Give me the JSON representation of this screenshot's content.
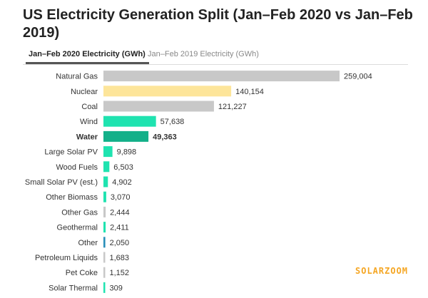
{
  "title": "US Electricity Generation Split (Jan–Feb 2020 vs Jan–Feb 2019)",
  "tabs": [
    {
      "label": "Jan–Feb 2020 Electricity (GWh)",
      "active": true
    },
    {
      "label": "Jan–Feb 2019 Electricity (GWh)",
      "active": false
    }
  ],
  "watermark": "SOLARZOOM",
  "colors": {
    "gray": "#c8c8c8",
    "nuclear": "#fde59a",
    "green": "#1fe3b0",
    "water": "#13b089",
    "other": "#2a8fb9"
  },
  "chart_data": {
    "type": "bar",
    "orientation": "horizontal",
    "categories": [
      "Natural Gas",
      "Nuclear",
      "Coal",
      "Wind",
      "Water",
      "Large Solar PV",
      "Wood Fuels",
      "Small Solar PV (est.)",
      "Other Biomass",
      "Other Gas",
      "Geothermal",
      "Other",
      "Petroleum Liquids",
      "Pet Coke",
      "Solar Thermal"
    ],
    "values": [
      259004,
      140154,
      121227,
      57638,
      49363,
      9898,
      6503,
      4902,
      3070,
      2444,
      2411,
      2050,
      1683,
      1152,
      309
    ],
    "value_labels": [
      "259,004",
      "140,154",
      "121,227",
      "57,638",
      "49,363",
      "9,898",
      "6,503",
      "4,902",
      "3,070",
      "2,444",
      "2,411",
      "2,050",
      "1,683",
      "1,152",
      "309"
    ],
    "bar_colors": [
      "gray",
      "nuclear",
      "gray",
      "green",
      "water",
      "green",
      "green",
      "green",
      "green",
      "gray",
      "green",
      "other",
      "gray",
      "gray",
      "green"
    ],
    "highlighted": "Water",
    "xlim": [
      0,
      259004
    ]
  }
}
